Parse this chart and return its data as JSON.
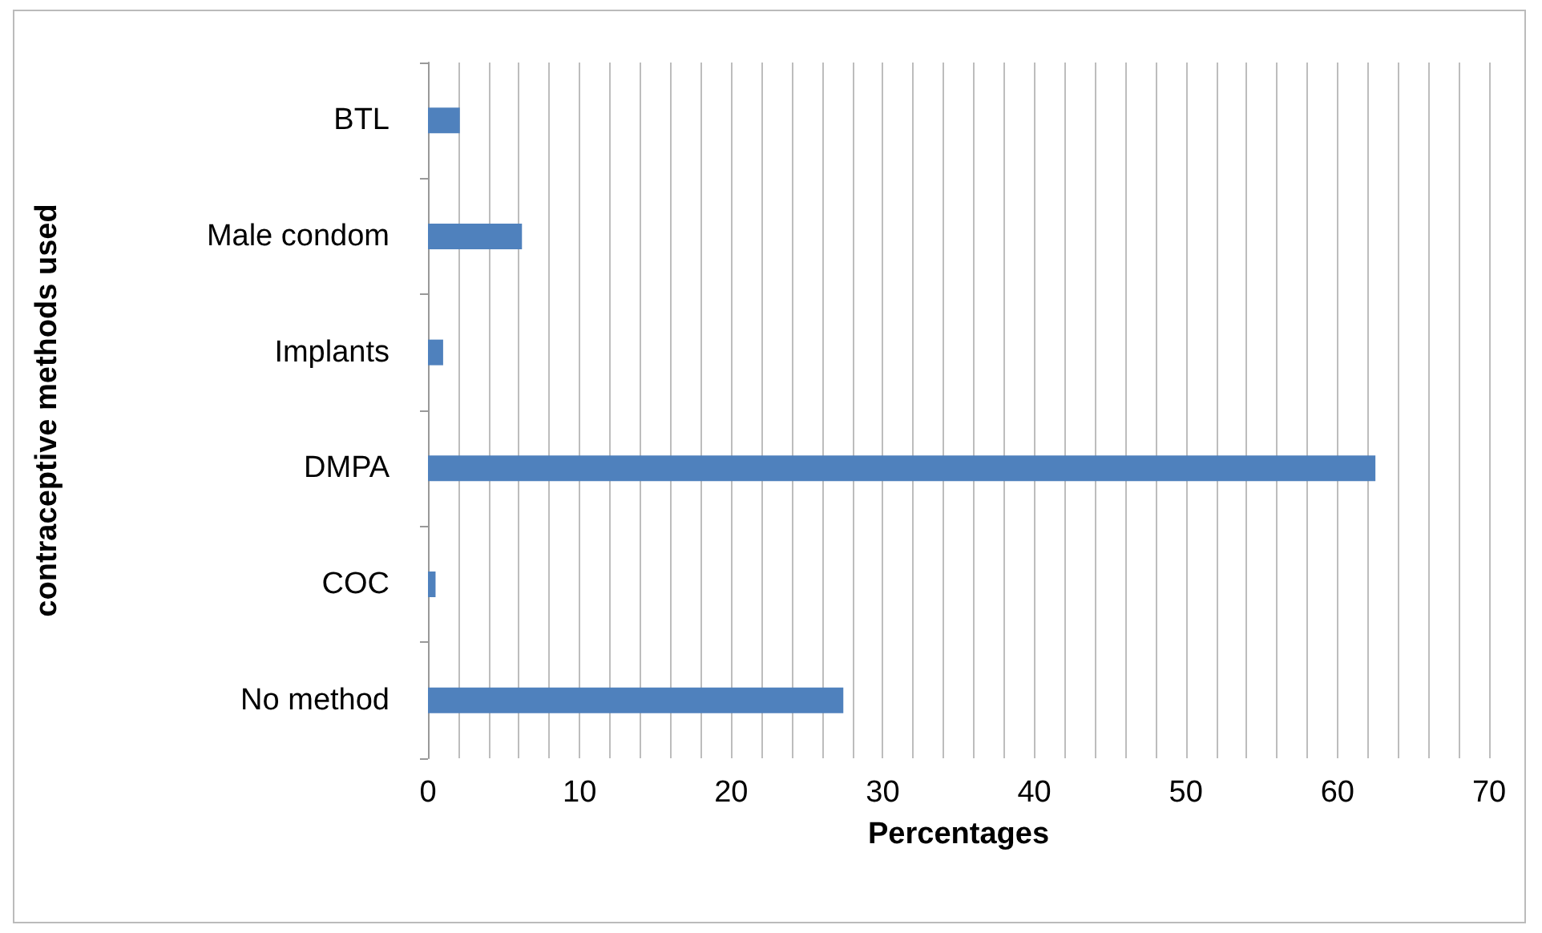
{
  "chart_data": {
    "type": "bar",
    "orientation": "horizontal",
    "xlabel": "Percentages",
    "ylabel": "contraceptive methods used",
    "categories": [
      "BTL",
      "Male condom",
      "Implants",
      "DMPA",
      "COC",
      "No method"
    ],
    "values": [
      2.1,
      6.2,
      1.0,
      62.5,
      0.5,
      27.4
    ],
    "color": "#4f81bd",
    "xlim": [
      0,
      70
    ],
    "xticks": [
      0,
      {
        "value": 2,
        "label": null
      },
      {
        "value": 4,
        "label": null
      },
      {
        "value": 6,
        "label": null
      },
      {
        "value": 8,
        "label": null
      },
      10,
      {
        "value": 12,
        "label": null
      },
      {
        "value": 14,
        "label": null
      },
      {
        "value": 16,
        "label": null
      },
      {
        "value": 18,
        "label": null
      },
      20,
      {
        "value": 22,
        "label": null
      },
      {
        "value": 24,
        "label": null
      },
      {
        "value": 26,
        "label": null
      },
      {
        "value": 28,
        "label": null
      },
      30,
      {
        "value": 32,
        "label": null
      },
      {
        "value": 34,
        "label": null
      },
      {
        "value": 36,
        "label": null
      },
      {
        "value": 38,
        "label": null
      },
      40,
      {
        "value": 42,
        "label": null
      },
      {
        "value": 44,
        "label": null
      },
      {
        "value": 46,
        "label": null
      },
      {
        "value": 48,
        "label": null
      },
      50,
      {
        "value": 52,
        "label": null
      },
      {
        "value": 54,
        "label": null
      },
      {
        "value": 56,
        "label": null
      },
      {
        "value": 58,
        "label": null
      },
      60,
      {
        "value": 62,
        "label": null
      },
      {
        "value": 64,
        "label": null
      },
      {
        "value": 66,
        "label": null
      },
      {
        "value": 68,
        "label": null
      },
      70
    ],
    "grid": "x"
  }
}
